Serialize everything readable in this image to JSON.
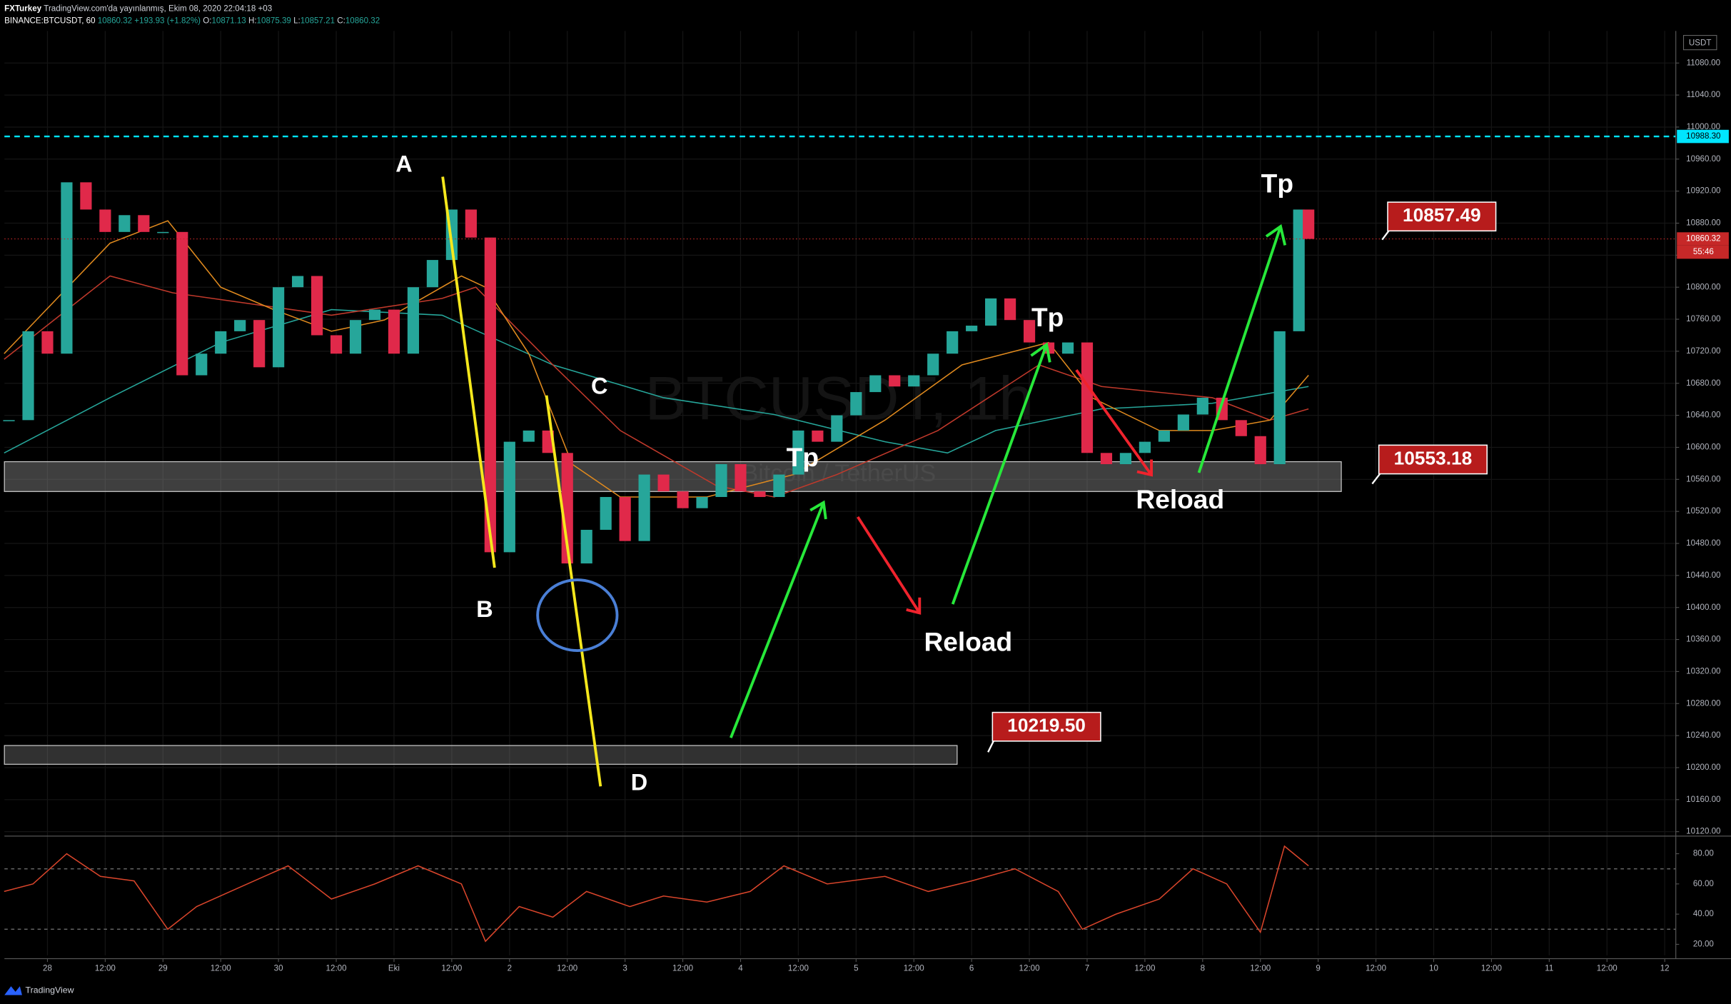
{
  "header": {
    "author": "FXTurkey",
    "published": "TradingView.com'da yayınlanmış, Ekim 08, 2020 22:04:18 +03",
    "symbol": "BINANCE:BTCUSDT, 60",
    "last": "10860.32",
    "change": "+193.93 (+1.82%)",
    "ohlc": [
      {
        "key": "O:",
        "value": "10871.13"
      },
      {
        "key": "H:",
        "value": "10875.39"
      },
      {
        "key": "L:",
        "value": "10857.21"
      },
      {
        "key": "C:",
        "value": "10860.32"
      }
    ]
  },
  "footer": {
    "brand": "TradingView"
  },
  "chart_data": [
    {
      "type": "candlestick",
      "watermark": "BTCUSDT, 1h",
      "watermark_sub": "Bitcoin / TetherUS",
      "axis_unit": "USDT",
      "up_color": "#26a69a",
      "down_color": "#e0294a",
      "grid": true,
      "x": [
        -8,
        -4,
        0,
        4,
        8,
        12,
        16,
        20,
        24,
        28,
        32,
        36,
        40,
        44,
        48,
        52,
        56,
        60,
        64,
        68,
        72,
        76,
        80,
        84,
        88,
        92,
        96,
        100,
        104,
        108,
        112,
        116,
        120,
        124,
        128,
        132,
        136,
        140,
        144,
        148,
        152,
        156,
        160,
        164,
        168,
        172,
        176,
        180,
        184,
        188,
        192,
        196,
        200,
        204,
        208,
        212,
        216,
        220,
        224,
        228,
        232,
        236,
        240,
        244,
        248,
        252,
        256,
        260,
        262
      ],
      "close": [
        10634,
        10745,
        10717,
        10931,
        10897,
        10869,
        10890,
        10869,
        10869,
        10690,
        10717,
        10745,
        10759,
        10700,
        10800,
        10814,
        10740,
        10717,
        10759,
        10772,
        10717,
        10800,
        10834,
        10897,
        10862,
        10469,
        10607,
        10621,
        10593,
        10455,
        10497,
        10538,
        10483,
        10566,
        10545,
        10524,
        10538,
        10579,
        10545,
        10538,
        10566,
        10621,
        10607,
        10640,
        10669,
        10690,
        10676,
        10690,
        10717,
        10745,
        10752,
        10786,
        10759,
        10731,
        10717,
        10731,
        10593,
        10579,
        10593,
        10607,
        10621,
        10641,
        10662,
        10634,
        10614,
        10579,
        10745,
        10897,
        10860.32
      ],
      "series": [
        {
          "color": "#26a69a",
          "x": [
            -9,
            13,
            36,
            59,
            82,
            105,
            128,
            151,
            174,
            187,
            197,
            219,
            242,
            262
          ],
          "values": [
            10593,
            10662,
            10731,
            10772,
            10765,
            10703,
            10662,
            10641,
            10607,
            10593,
            10621,
            10648,
            10655,
            10676
          ]
        },
        {
          "color": "#c0392b",
          "x": [
            -9,
            13,
            26,
            59,
            82,
            89,
            105,
            119,
            139,
            151,
            164,
            185,
            206,
            219,
            242,
            254,
            262
          ],
          "values": [
            10710,
            10814,
            10793,
            10765,
            10786,
            10800,
            10703,
            10621,
            10552,
            10538,
            10566,
            10621,
            10703,
            10676,
            10662,
            10634,
            10648
          ]
        },
        {
          "color": "#e08a1e",
          "x": [
            -9,
            13,
            25,
            36,
            47,
            59,
            70,
            86,
            91,
            100,
            109,
            119,
            137,
            155,
            174,
            190,
            208,
            217,
            231,
            242,
            254,
            262
          ],
          "values": [
            10717,
            10855,
            10883,
            10800,
            10772,
            10745,
            10759,
            10814,
            10800,
            10717,
            10579,
            10538,
            10538,
            10566,
            10634,
            10703,
            10731,
            10662,
            10621,
            10621,
            10634,
            10690
          ]
        }
      ],
      "xlim": [
        -8.94,
        338.3
      ],
      "ylim": [
        10114.5,
        11120
      ],
      "xticks": [
        {
          "value": 0,
          "label": "28"
        },
        {
          "value": 12,
          "label": "12:00"
        },
        {
          "value": 24,
          "label": "29"
        },
        {
          "value": 36,
          "label": "12:00"
        },
        {
          "value": 48,
          "label": "30"
        },
        {
          "value": 60,
          "label": "12:00"
        },
        {
          "value": 72,
          "label": "Eki"
        },
        {
          "value": 84,
          "label": "12:00"
        },
        {
          "value": 96,
          "label": "2"
        },
        {
          "value": 108,
          "label": "12:00"
        },
        {
          "value": 120,
          "label": "3"
        },
        {
          "value": 132,
          "label": "12:00"
        },
        {
          "value": 144,
          "label": "4"
        },
        {
          "value": 156,
          "label": "12:00"
        },
        {
          "value": 168,
          "label": "5"
        },
        {
          "value": 180,
          "label": "12:00"
        },
        {
          "value": 192,
          "label": "6"
        },
        {
          "value": 204,
          "label": "12:00"
        },
        {
          "value": 216,
          "label": "7"
        },
        {
          "value": 228,
          "label": "12:00"
        },
        {
          "value": 240,
          "label": "8"
        },
        {
          "value": 252,
          "label": "12:00"
        },
        {
          "value": 264,
          "label": "9"
        },
        {
          "value": 276,
          "label": "12:00"
        },
        {
          "value": 288,
          "label": "10"
        },
        {
          "value": 300,
          "label": "12:00"
        },
        {
          "value": 312,
          "label": "11"
        },
        {
          "value": 324,
          "label": "12:00"
        },
        {
          "value": 336,
          "label": "12"
        }
      ],
      "yticks": [
        {
          "value": 10120,
          "label": "10120.00"
        },
        {
          "value": 10160,
          "label": "10160.00"
        },
        {
          "value": 10200,
          "label": "10200.00"
        },
        {
          "value": 10240,
          "label": "10240.00"
        },
        {
          "value": 10280,
          "label": "10280.00"
        },
        {
          "value": 10320,
          "label": "10320.00"
        },
        {
          "value": 10360,
          "label": "10360.00"
        },
        {
          "value": 10400,
          "label": "10400.00"
        },
        {
          "value": 10440,
          "label": "10440.00"
        },
        {
          "value": 10480,
          "label": "10480.00"
        },
        {
          "value": 10520,
          "label": "10520.00"
        },
        {
          "value": 10560,
          "label": "10560.00"
        },
        {
          "value": 10600,
          "label": "10600.00"
        },
        {
          "value": 10640,
          "label": "10640.00"
        },
        {
          "value": 10680,
          "label": "10680.00"
        },
        {
          "value": 10720,
          "label": "10720.00"
        },
        {
          "value": 10760,
          "label": "10760.00"
        },
        {
          "value": 10800,
          "label": "10800.00"
        },
        {
          "value": 10840,
          "label": "10840.00"
        },
        {
          "value": 10880,
          "label": "10880.00"
        },
        {
          "value": 10920,
          "label": "10920.00"
        },
        {
          "value": 10960,
          "label": "10960.00"
        },
        {
          "value": 11000,
          "label": "11000.00"
        },
        {
          "value": 11040,
          "label": "11040.00"
        },
        {
          "value": 11080,
          "label": "11080.00"
        }
      ],
      "price_lines": [
        {
          "value": 10988.3,
          "label": "10988.30",
          "color": "#00e5ff",
          "text_color": "#000000",
          "style": "dashed"
        },
        {
          "value": 10860.32,
          "color": "#c62828",
          "text_color": "#ffffff",
          "style": "dotted"
        }
      ],
      "countdown": "55:46",
      "annotations": [
        "A",
        "B",
        "C",
        "D",
        "Tp",
        "Tp",
        "Tp",
        "Reload",
        "Reload"
      ],
      "price_callouts": [
        10857.49,
        10553.18,
        {
          "value": 10219.5,
          "label": "10219.50"
        }
      ]
    },
    {
      "type": "line",
      "color": "#d9452b",
      "x": [
        -9,
        -3,
        4,
        11,
        18,
        25,
        31,
        38,
        50,
        59,
        68,
        77,
        86,
        91,
        98,
        105,
        112,
        121,
        128,
        137,
        146,
        153,
        162,
        174,
        183,
        192,
        201,
        210,
        215,
        222,
        231,
        238,
        245,
        252,
        257,
        262
      ],
      "values": [
        55,
        60,
        80,
        65,
        62,
        30,
        45,
        55,
        72,
        50,
        60,
        72,
        60,
        22,
        45,
        38,
        55,
        45,
        52,
        48,
        55,
        72,
        60,
        65,
        55,
        62,
        70,
        55,
        30,
        40,
        50,
        70,
        60,
        28,
        85,
        72
      ],
      "xlim": [
        -8.94,
        338.3
      ],
      "ylim": [
        12.7,
        89.5
      ],
      "yticks": [
        {
          "value": 20,
          "label": "20.00"
        },
        {
          "value": 40,
          "label": "40.00"
        },
        {
          "value": 60,
          "label": "60.00"
        },
        {
          "value": 80,
          "label": "80.00"
        }
      ],
      "bands": [
        70,
        30
      ]
    }
  ]
}
